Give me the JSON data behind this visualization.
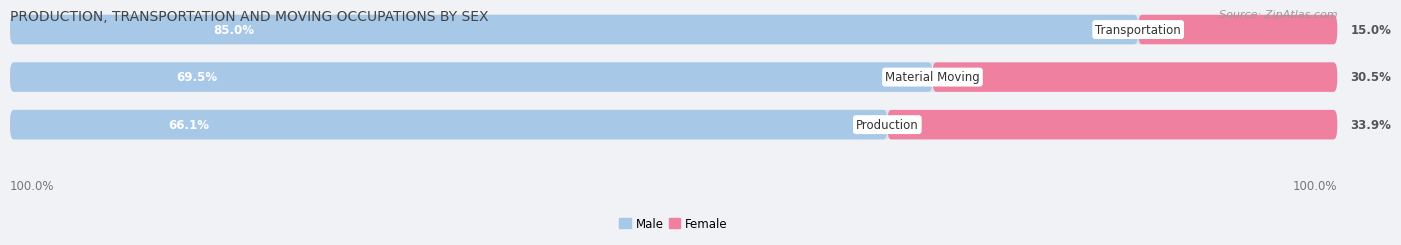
{
  "title": "PRODUCTION, TRANSPORTATION AND MOVING OCCUPATIONS BY SEX",
  "source_text": "Source: ZipAtlas.com",
  "categories": [
    "Transportation",
    "Material Moving",
    "Production"
  ],
  "male_values": [
    85.0,
    69.5,
    66.1
  ],
  "female_values": [
    15.0,
    30.5,
    33.9
  ],
  "male_color": "#a8c8e8",
  "female_color": "#f080a0",
  "row_bg_color": "#e0e4ea",
  "title_color": "#444444",
  "source_color": "#999999",
  "male_label_color": "#ffffff",
  "female_label_color": "#555555",
  "cat_label_color": "#333333",
  "axis_tick_color": "#777777",
  "background_color": "#f0f2f5",
  "title_fontsize": 10,
  "bar_label_fontsize": 8.5,
  "cat_label_fontsize": 8.5,
  "legend_fontsize": 8.5,
  "source_fontsize": 8,
  "axis_label_left": "100.0%",
  "axis_label_right": "100.0%"
}
